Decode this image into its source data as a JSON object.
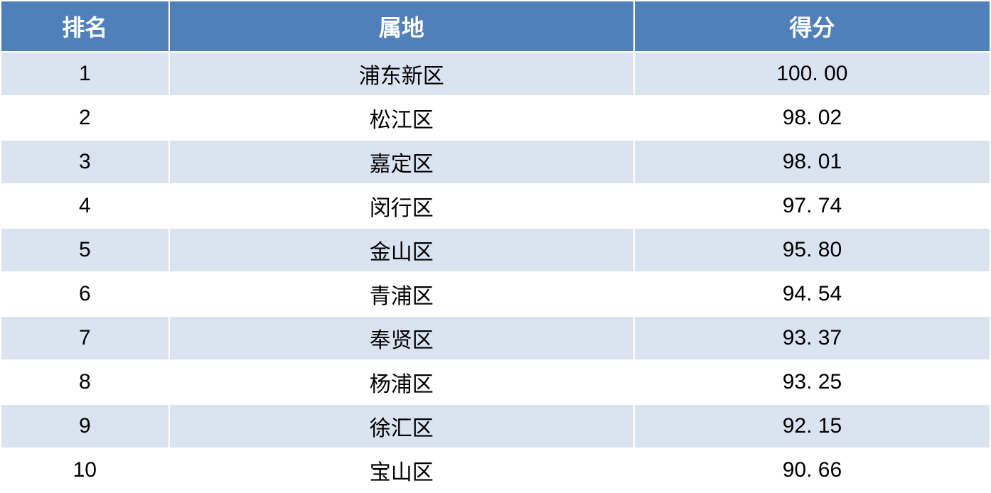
{
  "table": {
    "type": "table",
    "columns": [
      {
        "key": "rank",
        "label": "排名",
        "width_pct": 17,
        "align": "center"
      },
      {
        "key": "region",
        "label": "属地",
        "width_pct": 47,
        "align": "center"
      },
      {
        "key": "score",
        "label": "得分",
        "width_pct": 36,
        "align": "center"
      }
    ],
    "rows": [
      {
        "rank": "1",
        "region": "浦东新区",
        "score": "100. 00"
      },
      {
        "rank": "2",
        "region": "松江区",
        "score": "98. 02"
      },
      {
        "rank": "3",
        "region": "嘉定区",
        "score": "98. 01"
      },
      {
        "rank": "4",
        "region": "闵行区",
        "score": "97. 74"
      },
      {
        "rank": "5",
        "region": "金山区",
        "score": "95. 80"
      },
      {
        "rank": "6",
        "region": "青浦区",
        "score": "94. 54"
      },
      {
        "rank": "7",
        "region": "奉贤区",
        "score": "93. 37"
      },
      {
        "rank": "8",
        "region": "杨浦区",
        "score": "93. 25"
      },
      {
        "rank": "9",
        "region": "徐汇区",
        "score": "92. 15"
      },
      {
        "rank": "10",
        "region": "宝山区",
        "score": "90. 66"
      }
    ],
    "style": {
      "header_bg": "#5080b9",
      "header_fg": "#ffffff",
      "header_fontsize": 32,
      "header_fontweight": "bold",
      "cell_fontsize": 30,
      "cell_fg": "#000000",
      "row_odd_bg": "#dae3f0",
      "row_even_bg": "#ffffff",
      "border_color": "#ffffff",
      "border_width": 2
    }
  }
}
